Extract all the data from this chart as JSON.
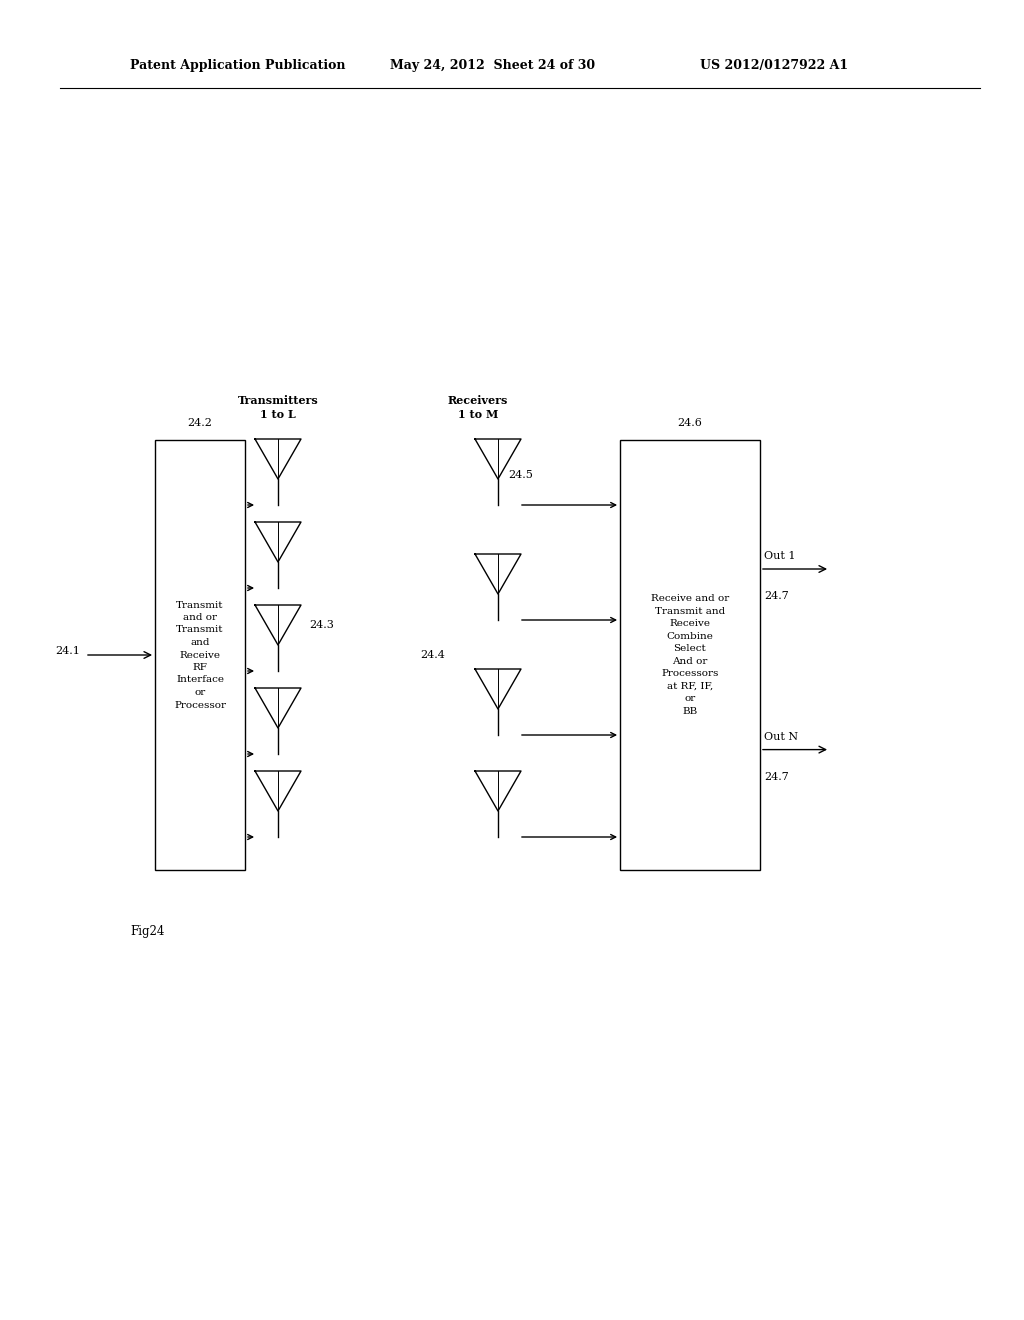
{
  "header_left": "Patent Application Publication",
  "header_mid": "May 24, 2012  Sheet 24 of 30",
  "header_right": "US 2012/0127922 A1",
  "fig_label": "Fig24",
  "bg_color": "#ffffff",
  "line_color": "#000000",
  "label_241": "24.1",
  "label_242": "24.2",
  "label_243": "24.3",
  "label_244": "24.4",
  "label_245": "24.5",
  "label_246": "24.6",
  "label_247a": "24.7",
  "label_247b": "24.7",
  "box1_text": "Transmit\nand or\nTransmit\nand\nReceive\nRF\nInterface\nor\nProcessor",
  "box2_text": "Receive and or\nTransmit and\nReceive\nCombine\nSelect\nAnd or\nProcessors\nat RF, IF,\nor\nBB",
  "tx_label": "Transmitters\n1 to L",
  "rx_label": "Receivers\n1 to M",
  "out1_label": "Out 1",
  "outN_label": "Out N"
}
